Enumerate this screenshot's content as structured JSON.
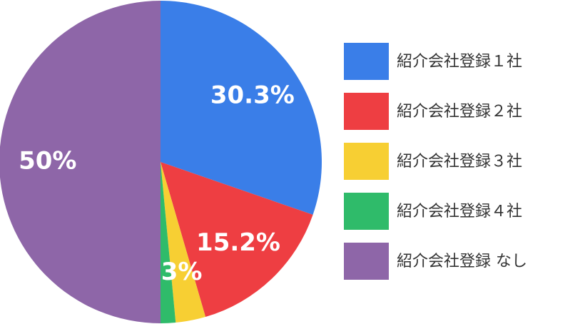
{
  "chart_data": {
    "type": "pie",
    "categories": [
      "紹介会社登録１社",
      "紹介会社登録２社",
      "紹介会社登録３社",
      "紹介会社登録４社",
      "紹介会社登録 なし"
    ],
    "values": [
      30.3,
      15.2,
      3,
      1.5,
      50
    ],
    "value_labels": [
      "30.3%",
      "15.2%",
      "3%",
      null,
      "50%"
    ],
    "colors": [
      "#3a7ee8",
      "#ee3e42",
      "#f7cf33",
      "#2fbb6a",
      "#8e66a8"
    ],
    "legend": "right"
  }
}
